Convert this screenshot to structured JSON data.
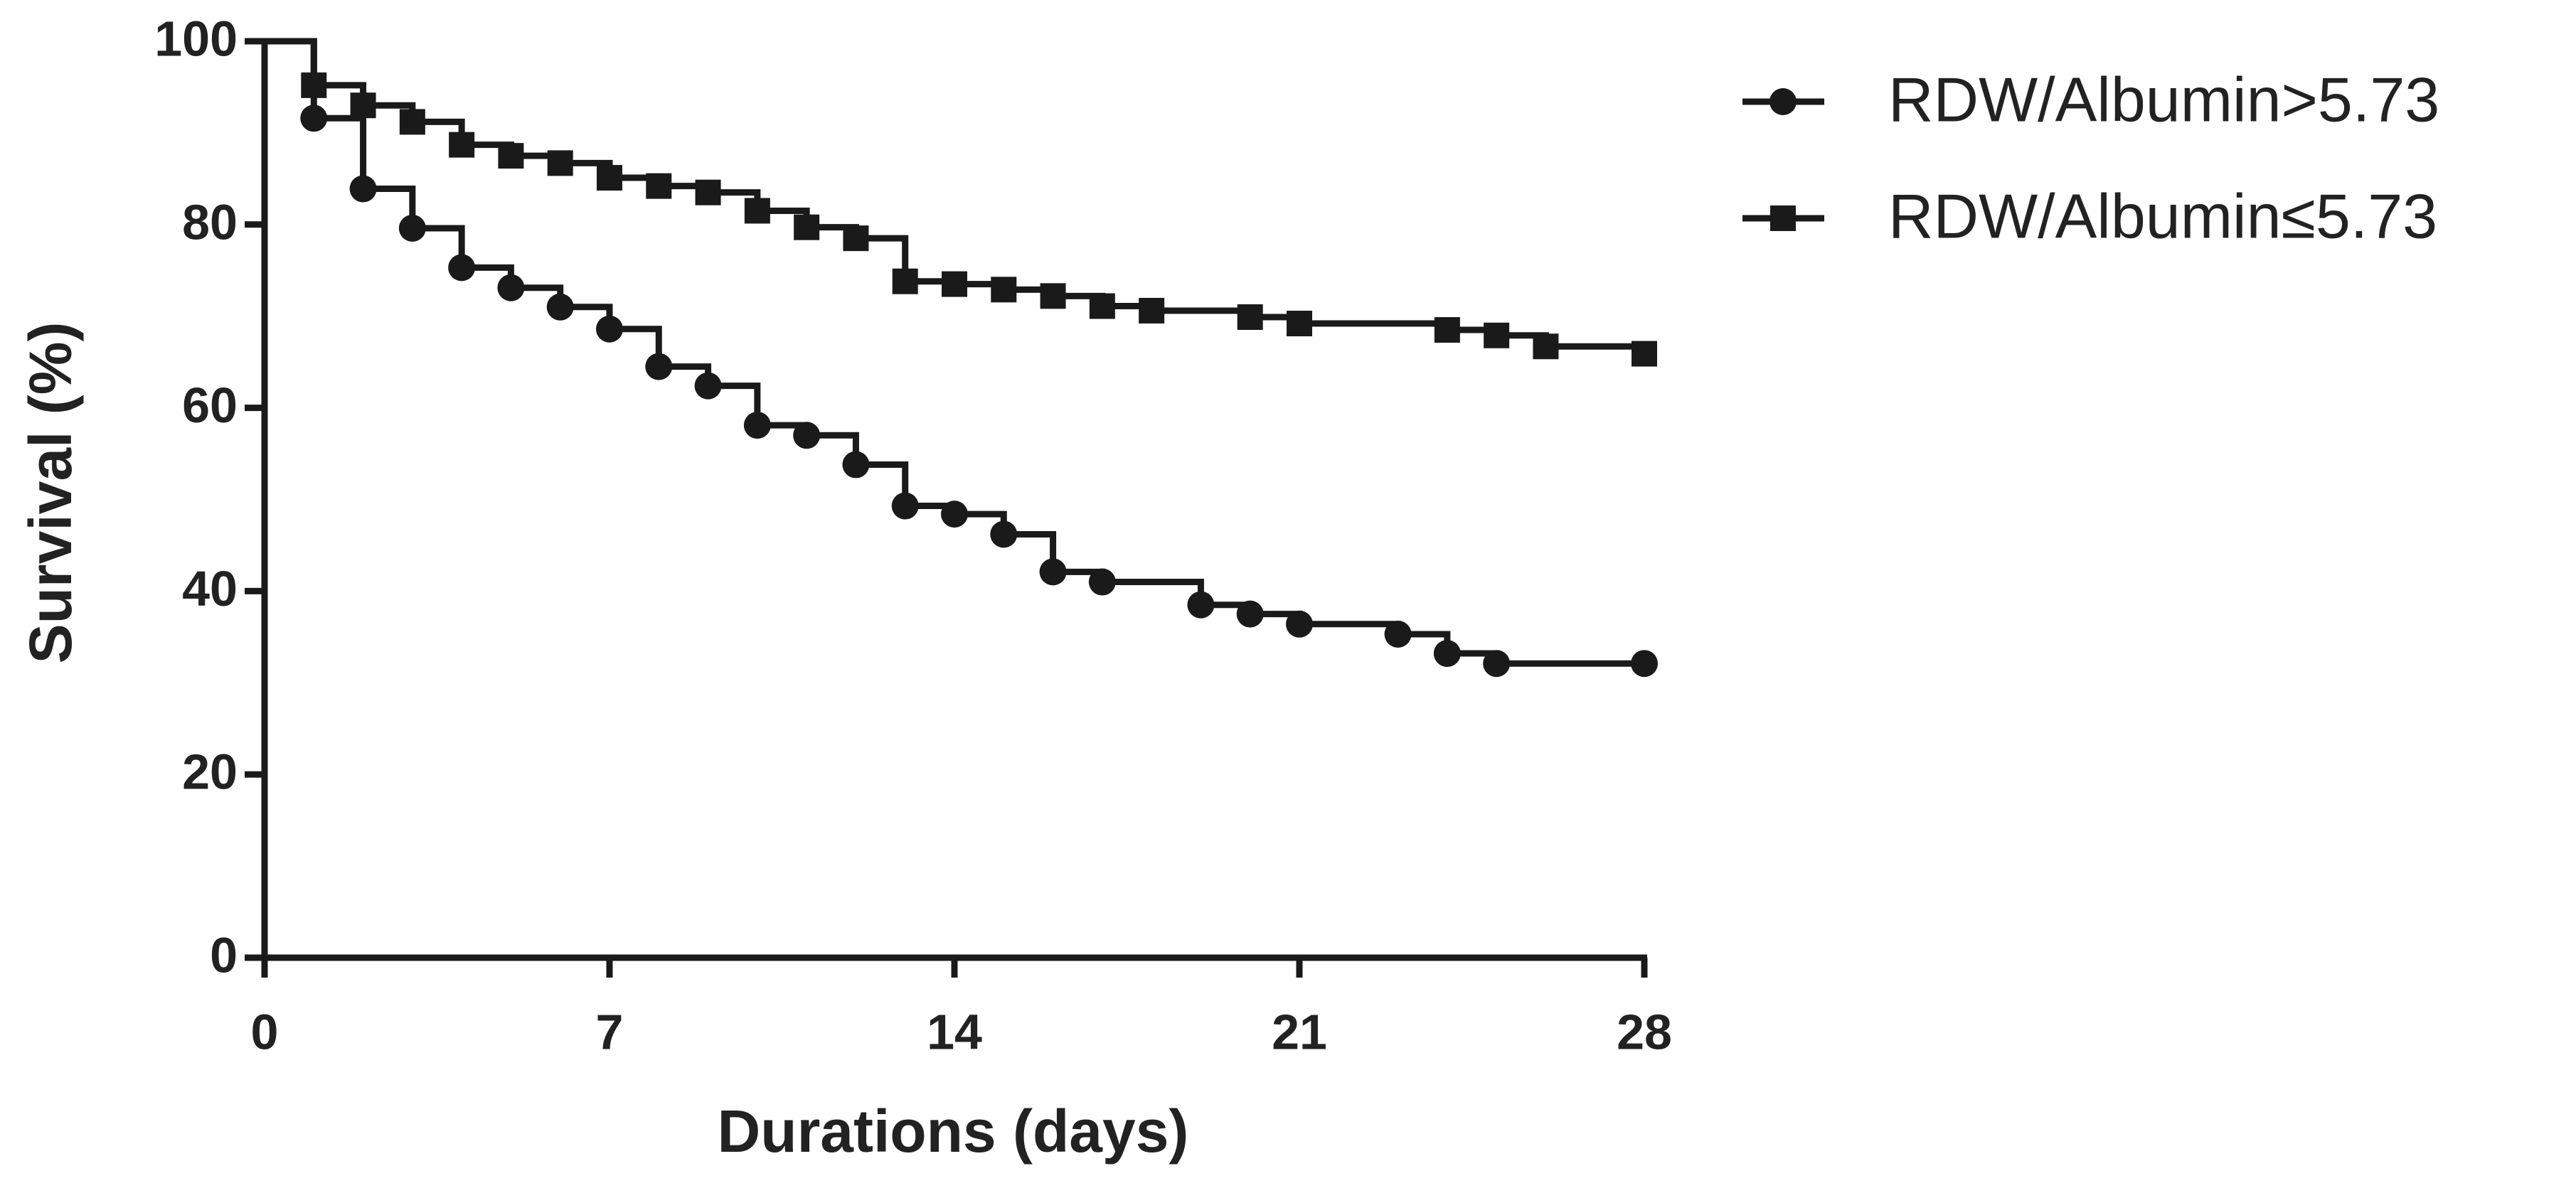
{
  "chart_data": {
    "type": "line",
    "step": true,
    "xlabel": "Durations (days)",
    "ylabel": "Survival (%)",
    "xlim": [
      0,
      28
    ],
    "xticks": [
      0,
      7,
      14,
      21,
      28
    ],
    "ylim": [
      0,
      100
    ],
    "yticks": [
      0,
      20,
      40,
      60,
      80,
      100
    ],
    "series": [
      {
        "name": "RDW/Albumin>5.73",
        "color": "#1a1a1a",
        "marker": "circle",
        "x": [
          0,
          1,
          2,
          3,
          4,
          5,
          6,
          7,
          8,
          9,
          10,
          11,
          12,
          13,
          14,
          15,
          16,
          17,
          19,
          20,
          21,
          23,
          24,
          25,
          28
        ],
        "values": [
          100,
          91.6,
          83.9,
          79.6,
          75.3,
          73.1,
          71,
          68.6,
          64.5,
          62.4,
          58.1,
          57,
          53.8,
          49.3,
          48.4,
          46.2,
          42.1,
          41,
          38.5,
          37.5,
          36.4,
          35.3,
          33.2,
          32.1,
          32.1
        ]
      },
      {
        "name": "RDW/Albumin≤5.73",
        "color": "#1a1a1a",
        "marker": "square",
        "x": [
          0,
          1,
          2,
          3,
          4,
          5,
          6,
          7,
          8,
          9,
          10,
          11,
          12,
          13,
          14,
          15,
          16,
          17,
          18,
          20,
          21,
          24,
          25,
          26,
          28
        ],
        "values": [
          100,
          95.2,
          93,
          91.2,
          88.7,
          87.5,
          86.7,
          85.1,
          84.2,
          83.5,
          81.5,
          79.7,
          78.5,
          73.8,
          73.5,
          72.9,
          72.2,
          71.1,
          70.6,
          69.9,
          69.2,
          68.5,
          67.9,
          66.7,
          65.9
        ]
      }
    ]
  }
}
